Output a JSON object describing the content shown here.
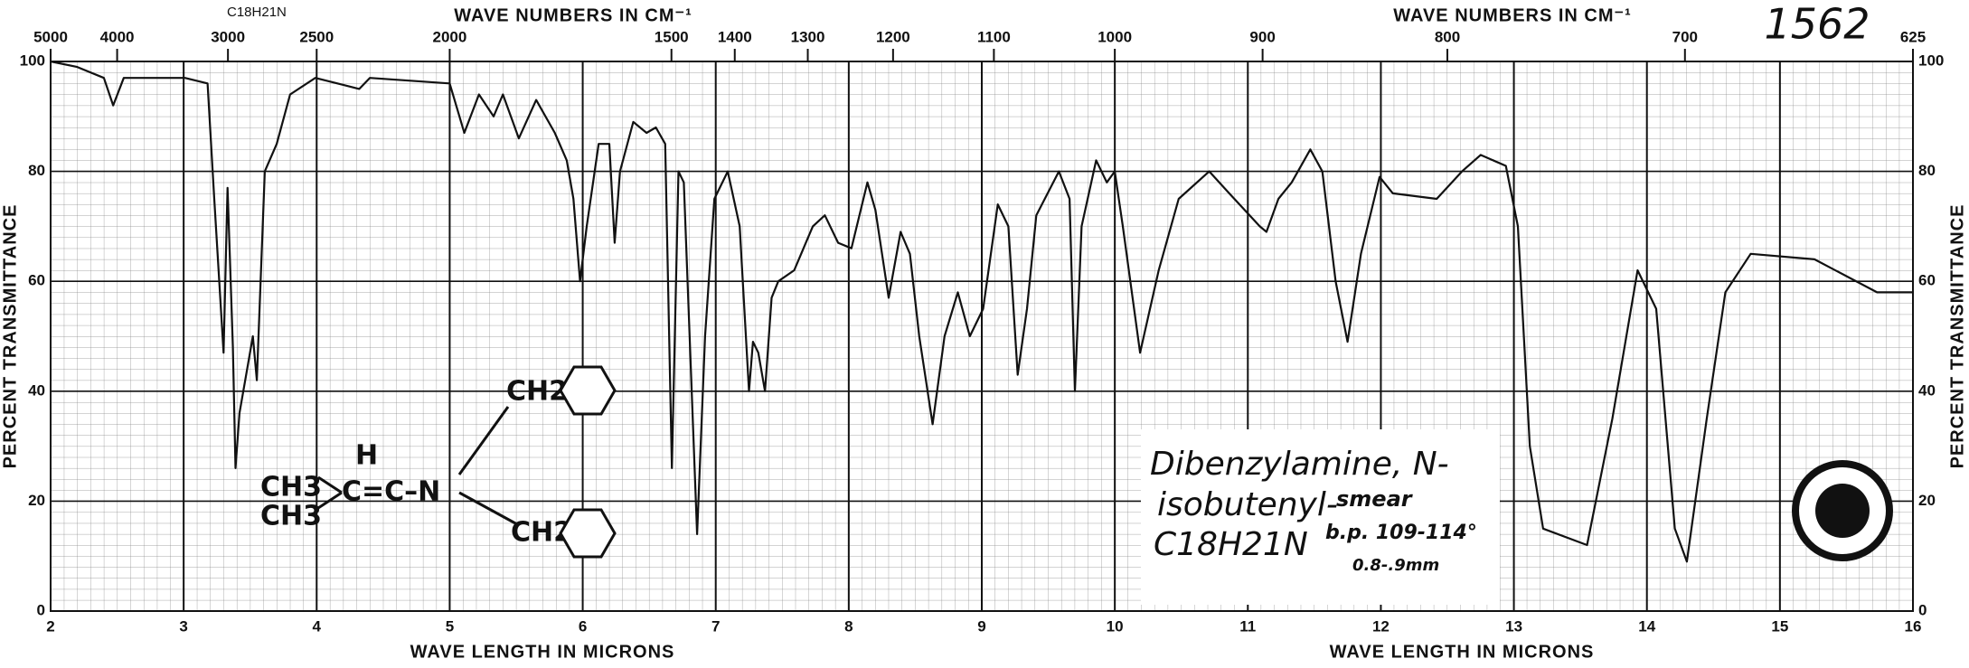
{
  "chart_data": {
    "type": "line",
    "catalog_number": "1562",
    "formula_top": "C18H21N",
    "x_top_title": "WAVE NUMBERS IN CM⁻¹",
    "x_title": "WAVE LENGTH IN MICRONS",
    "y_title": "PERCENT TRANSMITTANCE",
    "color": "#111111",
    "grid": true,
    "xlim": [
      2,
      16
    ],
    "ylim": [
      0,
      100
    ],
    "xticks": [
      2,
      3,
      4,
      5,
      6,
      7,
      8,
      9,
      10,
      11,
      12,
      13,
      14,
      15,
      16
    ],
    "yticks": [
      0,
      20,
      40,
      60,
      80,
      100
    ],
    "x2ticks": [
      {
        "value": 2,
        "label": "5000"
      },
      {
        "value": 2.5,
        "label": "4000"
      },
      {
        "value": 3.333,
        "label": "3000"
      },
      {
        "value": 4,
        "label": "2500"
      },
      {
        "value": 5,
        "label": "2000"
      },
      {
        "value": 6.667,
        "label": "1500"
      },
      {
        "value": 7.143,
        "label": "1400"
      },
      {
        "value": 7.692,
        "label": "1300"
      },
      {
        "value": 8.333,
        "label": "1200"
      },
      {
        "value": 9.091,
        "label": "1100"
      },
      {
        "value": 10,
        "label": "1000"
      },
      {
        "value": 11.111,
        "label": "900"
      },
      {
        "value": 12.5,
        "label": "800"
      },
      {
        "value": 14.286,
        "label": "700"
      },
      {
        "value": 16,
        "label": "625"
      }
    ],
    "x": [
      2.0,
      2.2,
      2.4,
      2.47,
      2.55,
      2.8,
      3.01,
      3.18,
      3.23,
      3.3,
      3.33,
      3.37,
      3.39,
      3.42,
      3.47,
      3.52,
      3.55,
      3.61,
      3.7,
      3.8,
      3.99,
      4.32,
      4.4,
      5.0,
      5.11,
      5.22,
      5.33,
      5.4,
      5.52,
      5.65,
      5.79,
      5.88,
      5.93,
      5.98,
      6.03,
      6.12,
      6.2,
      6.24,
      6.28,
      6.38,
      6.48,
      6.55,
      6.62,
      6.67,
      6.72,
      6.76,
      6.86,
      6.92,
      6.99,
      7.09,
      7.18,
      7.25,
      7.28,
      7.32,
      7.37,
      7.42,
      7.47,
      7.59,
      7.73,
      7.82,
      7.92,
      8.02,
      8.14,
      8.2,
      8.3,
      8.39,
      8.46,
      8.53,
      8.63,
      8.72,
      8.82,
      8.91,
      9.01,
      9.12,
      9.2,
      9.27,
      9.34,
      9.41,
      9.58,
      9.66,
      9.7,
      9.75,
      9.86,
      9.94,
      10.0,
      10.06,
      10.19,
      10.33,
      10.48,
      10.71,
      10.86,
      11.09,
      11.14,
      11.23,
      11.33,
      11.47,
      11.56,
      11.66,
      11.75,
      11.85,
      11.99,
      12.09,
      12.42,
      12.61,
      12.75,
      12.94,
      13.03,
      13.12,
      13.22,
      13.55,
      13.74,
      13.93,
      14.07,
      14.21,
      14.3,
      14.45,
      14.59,
      14.78,
      15.26,
      15.73,
      16.0
    ],
    "values": [
      100,
      99,
      97,
      92,
      97,
      97,
      97,
      96,
      75,
      47,
      77,
      48,
      26,
      36,
      43,
      50,
      42,
      80,
      85,
      94,
      97,
      95,
      97,
      96,
      87,
      94,
      90,
      94,
      86,
      93,
      87,
      82,
      75,
      60,
      70,
      85,
      85,
      67,
      80,
      89,
      87,
      88,
      85,
      26,
      80,
      78,
      14,
      50,
      75,
      80,
      70,
      40,
      49,
      47,
      40,
      57,
      60,
      62,
      70,
      72,
      67,
      66,
      78,
      73,
      57,
      69,
      65,
      50,
      34,
      50,
      58,
      50,
      55,
      74,
      70,
      43,
      55,
      72,
      80,
      75,
      40,
      70,
      82,
      78,
      80,
      70,
      47,
      62,
      75,
      80,
      76,
      70,
      69,
      75,
      78,
      84,
      80,
      60,
      49,
      65,
      79,
      76,
      75,
      80,
      83,
      81,
      70,
      30,
      15,
      12,
      35,
      62,
      55,
      15,
      9,
      35,
      58,
      65,
      64,
      58,
      58
    ],
    "annotations": {
      "name_line1": "Dibenzylamine, N-",
      "name_line2": "isobutenyl-",
      "formula": "C18H21N",
      "sample": "smear",
      "boiling_point": "b.p. 109-114°",
      "pressure": "0.8-.9mm"
    },
    "structure": {
      "methyl_top": "CH3",
      "methyl_bottom": "CH3",
      "hydrogen": "H",
      "chain": "C=C–N",
      "methylene_top": "CH2",
      "methylene_bottom": "CH2"
    }
  }
}
